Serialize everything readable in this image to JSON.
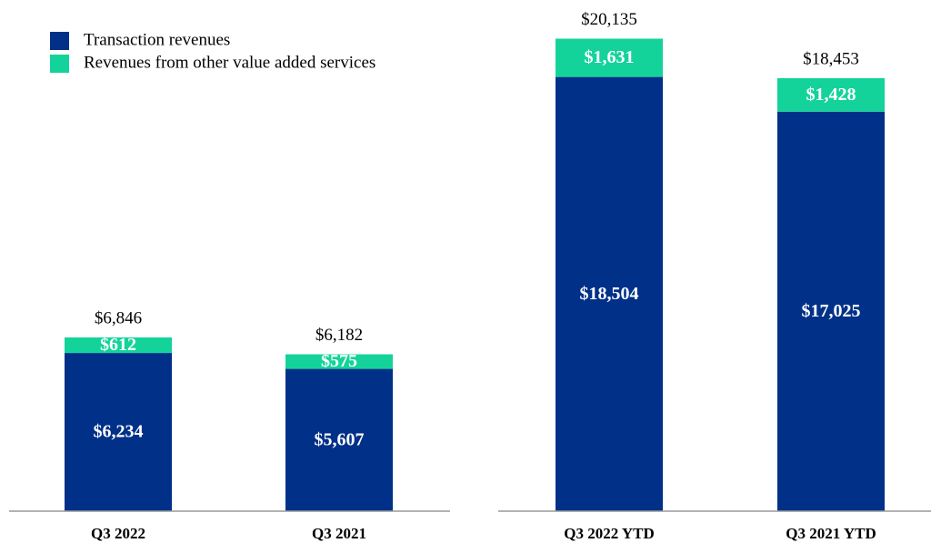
{
  "chart_data": [
    {
      "type": "stacked_bar",
      "categories": [
        "Q3 2022",
        "Q3 2021"
      ],
      "series": [
        {
          "name": "Transaction revenues",
          "color": "#003087",
          "values": [
            6234,
            5607
          ],
          "value_labels": [
            "$6,234",
            "$5,607"
          ]
        },
        {
          "name": "Revenues from other value added services",
          "color": "#14d39a",
          "values": [
            612,
            575
          ],
          "value_labels": [
            "$612",
            "$575"
          ]
        }
      ],
      "totals": [
        6846,
        6182
      ],
      "total_labels": [
        "$6,846",
        "$6,182"
      ],
      "ylim": [
        0,
        20000
      ]
    },
    {
      "type": "stacked_bar",
      "categories": [
        "Q3 2022 YTD",
        "Q3 2021 YTD"
      ],
      "series": [
        {
          "color": "#003087",
          "values": [
            18504,
            17025
          ],
          "value_labels": [
            "$18,504",
            "$17,025"
          ]
        },
        {
          "color": "#14d39a",
          "values": [
            1631,
            1428
          ],
          "value_labels": [
            "$1,631",
            "$1,428"
          ]
        }
      ],
      "totals": [
        20135,
        18453
      ],
      "total_labels": [
        "$20,135",
        "$18,453"
      ],
      "ylim": [
        0,
        20000
      ]
    }
  ]
}
